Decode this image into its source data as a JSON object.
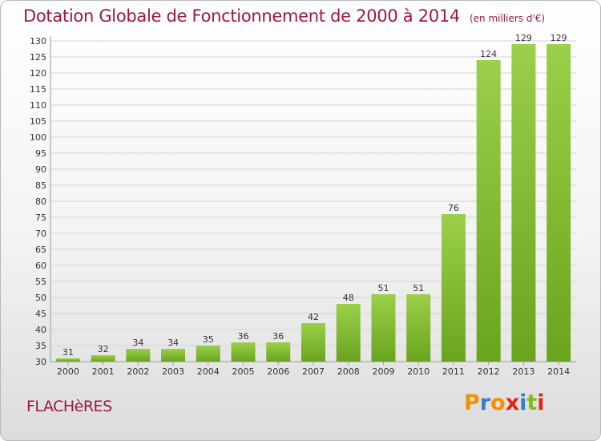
{
  "title": "Dotation Globale de Fonctionnement de 2000 à 2014",
  "subtitle": "(en milliers d'€)",
  "commune": "FLACHèRES",
  "logo_text": "Proxiti",
  "colors": {
    "title": "#a0163f",
    "bar_light": "#9ccf4a",
    "bar_dark": "#6aa41e",
    "logo_letters": [
      "#f39200",
      "#3a7dc9",
      "#f39200",
      "#e2231a",
      "#3a7dc9",
      "#89b81e",
      "#e2231a"
    ]
  },
  "chart_data": {
    "type": "bar",
    "title": "Dotation Globale de Fonctionnement de 2000 à 2014",
    "subtitle": "(en milliers d'€)",
    "categories": [
      "2000",
      "2001",
      "2002",
      "2003",
      "2004",
      "2005",
      "2006",
      "2007",
      "2008",
      "2009",
      "2010",
      "2011",
      "2012",
      "2013",
      "2014"
    ],
    "values": [
      31,
      32,
      34,
      34,
      35,
      36,
      36,
      42,
      48,
      51,
      51,
      76,
      124,
      129,
      129
    ],
    "ylim": [
      30,
      130
    ],
    "yticks": [
      30,
      35,
      40,
      45,
      50,
      55,
      60,
      65,
      70,
      75,
      80,
      85,
      90,
      95,
      100,
      105,
      110,
      115,
      120,
      125,
      130
    ],
    "grid": true,
    "data_labels": true
  }
}
